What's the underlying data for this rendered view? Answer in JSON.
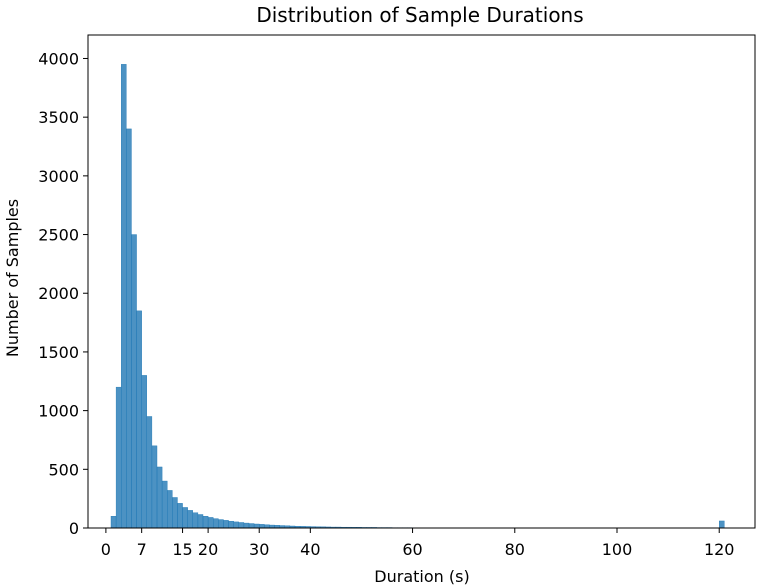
{
  "chart_data": {
    "type": "bar",
    "title": "Distribution of Sample Durations",
    "xlabel": "Duration (s)",
    "ylabel": "Number of Samples",
    "xlim": [
      -3.5,
      127
    ],
    "ylim": [
      0,
      4200
    ],
    "grid": false,
    "legend": "none",
    "bar_color": "#1f77b4",
    "x_ticks": [
      0,
      20,
      40,
      60,
      80,
      100,
      120
    ],
    "x_tick_labels": [
      "0",
      "20",
      "40",
      "60",
      "80",
      "100",
      "120"
    ],
    "highlight_ticks": [
      7,
      15,
      30
    ],
    "highlight_tick_labels": [
      "7",
      "15",
      "30"
    ],
    "highlight_color": "#f5a623",
    "y_ticks": [
      0,
      500,
      1000,
      1500,
      2000,
      2500,
      3000,
      3500,
      4000
    ],
    "y_tick_labels": [
      "0",
      "500",
      "1000",
      "1500",
      "2000",
      "2500",
      "3000",
      "3500",
      "4000"
    ],
    "bin_width": 1,
    "x": [
      1.5,
      2.5,
      3.5,
      4.5,
      5.5,
      6.5,
      7.5,
      8.5,
      9.5,
      10.5,
      11.5,
      12.5,
      13.5,
      14.5,
      15.5,
      16.5,
      17.5,
      18.5,
      19.5,
      20.5,
      21.5,
      22.5,
      23.5,
      24.5,
      25.5,
      26.5,
      27.5,
      28.5,
      29.5,
      30.5,
      31.5,
      32.5,
      33.5,
      34.5,
      35.5,
      36.5,
      37.5,
      38.5,
      39.5,
      40.5,
      41.5,
      42.5,
      43.5,
      44.5,
      45.5,
      46.5,
      47.5,
      48.5,
      49.5,
      50.5,
      51.5,
      52.5,
      53.5,
      54.5,
      55.5,
      56.5,
      57.5,
      58.5,
      59.5,
      60.5,
      61.5,
      62.5,
      63.5,
      64.5,
      65.5,
      66.5,
      67.5,
      68.5,
      69.5,
      70.5,
      71.5,
      72.5,
      73.5,
      74.5,
      75.5,
      76.5,
      77.5,
      78.5,
      79.5,
      80.5,
      81.5,
      82.5,
      83.5,
      84.5,
      85.5,
      86.5,
      87.5,
      88.5,
      89.5,
      90.5,
      91.5,
      92.5,
      93.5,
      94.5,
      95.5,
      96.5,
      97.5,
      98.5,
      99.5,
      100.5,
      101.5,
      102.5,
      103.5,
      104.5,
      105.5,
      106.5,
      107.5,
      108.5,
      109.5,
      110.5,
      111.5,
      112.5,
      113.5,
      114.5,
      115.5,
      116.5,
      117.5,
      118.5,
      119.5,
      120.5
    ],
    "values": [
      100,
      1200,
      3950,
      3400,
      2500,
      1850,
      1300,
      950,
      700,
      520,
      400,
      320,
      260,
      210,
      175,
      150,
      130,
      115,
      100,
      90,
      80,
      72,
      65,
      58,
      52,
      47,
      42,
      38,
      34,
      31,
      28,
      25,
      23,
      21,
      19,
      17,
      15,
      14,
      13,
      12,
      11,
      10,
      9,
      8,
      8,
      7,
      7,
      6,
      6,
      5,
      5,
      5,
      4,
      4,
      4,
      3,
      3,
      3,
      3,
      2,
      2,
      2,
      2,
      2,
      2,
      2,
      1,
      1,
      1,
      1,
      1,
      1,
      1,
      1,
      1,
      1,
      1,
      1,
      1,
      1,
      1,
      1,
      1,
      1,
      1,
      1,
      1,
      1,
      1,
      1,
      1,
      1,
      1,
      1,
      1,
      1,
      1,
      1,
      1,
      1,
      1,
      1,
      1,
      1,
      1,
      1,
      1,
      1,
      1,
      1,
      1,
      1,
      1,
      1,
      1,
      1,
      1,
      1,
      1,
      60
    ]
  }
}
